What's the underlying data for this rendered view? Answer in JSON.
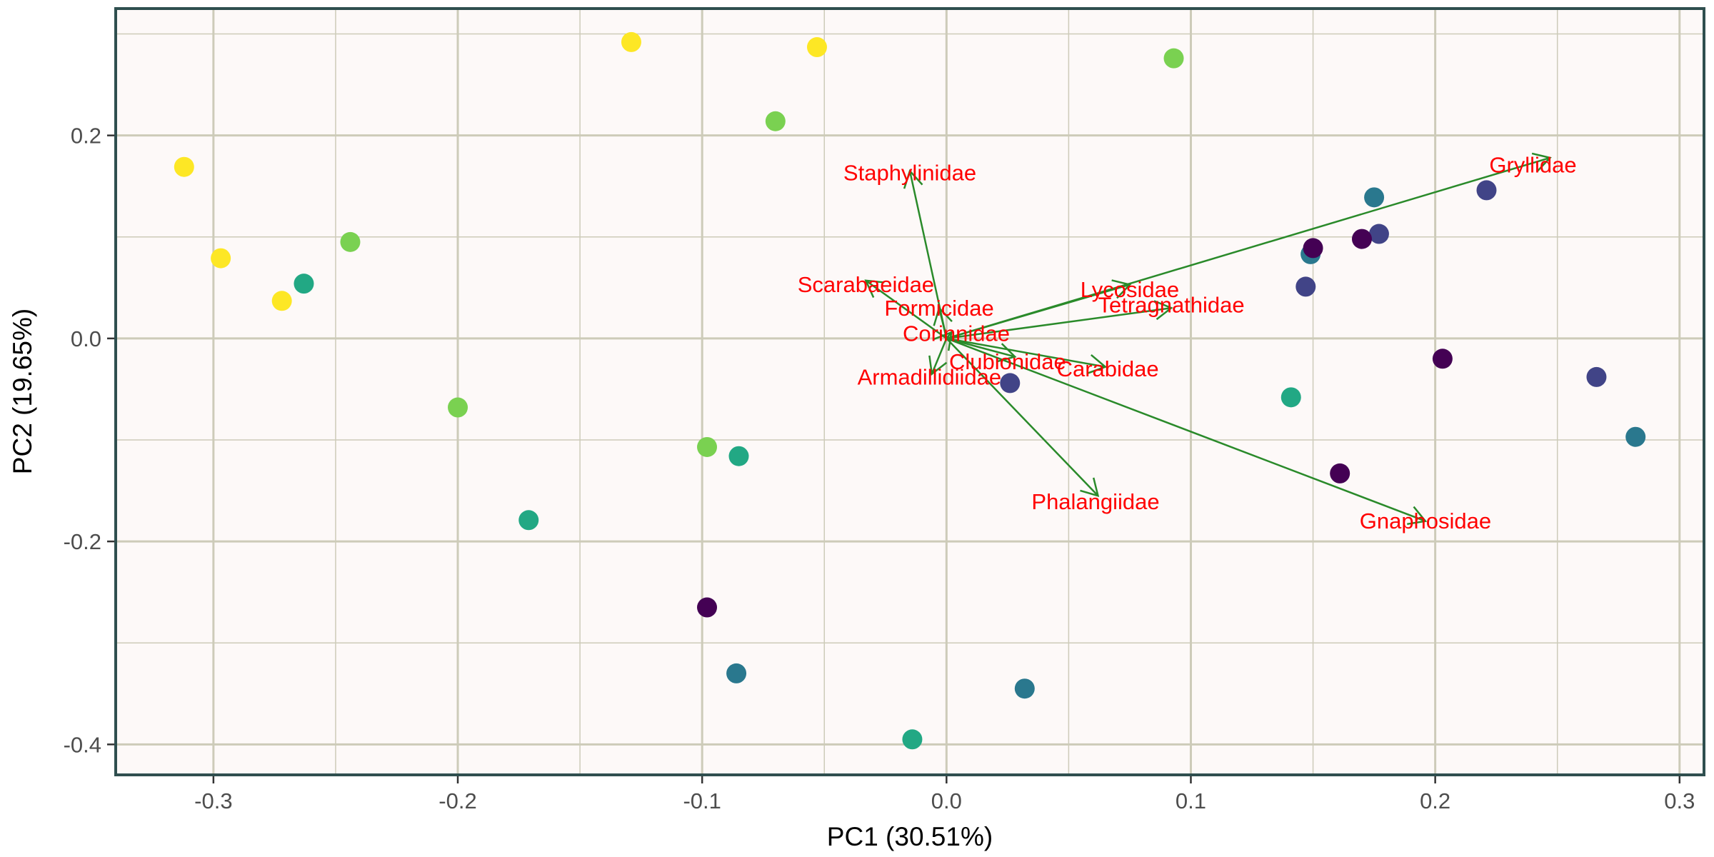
{
  "chart_data": {
    "type": "scatter",
    "title": "",
    "xlabel": "PC1 (30.51%)",
    "ylabel": "PC2 (19.65%)",
    "xlim": [
      -0.34,
      0.31
    ],
    "ylim": [
      -0.43,
      0.325
    ],
    "x_ticks": [
      -0.3,
      -0.2,
      -0.1,
      0.0,
      0.1,
      0.2,
      0.3
    ],
    "x_tick_labels": [
      "-0.3",
      "-0.2",
      "-0.1",
      "0.0",
      "0.1",
      "0.2",
      "0.3"
    ],
    "y_ticks": [
      -0.4,
      -0.2,
      0.0,
      0.2
    ],
    "y_tick_labels": [
      "-0.4",
      "-0.2",
      "0.0",
      "0.2"
    ],
    "x_minor_ticks": [
      -0.25,
      -0.15,
      -0.05,
      0.05,
      0.15,
      0.25
    ],
    "y_minor_ticks": [
      -0.3,
      -0.1,
      0.1,
      0.3
    ],
    "grid": true,
    "legend": "none",
    "colors": {
      "panel_background": "#fdf9f8",
      "grid": "#cdcbb9",
      "border": "#2f4f4f",
      "arrow": "#2a8a2a",
      "label": "#ff0000"
    },
    "points": [
      {
        "x": -0.312,
        "y": 0.169,
        "color": "#fde725"
      },
      {
        "x": -0.297,
        "y": 0.079,
        "color": "#fde725"
      },
      {
        "x": -0.272,
        "y": 0.037,
        "color": "#fde725"
      },
      {
        "x": -0.129,
        "y": 0.292,
        "color": "#fde725"
      },
      {
        "x": -0.053,
        "y": 0.287,
        "color": "#fde725"
      },
      {
        "x": -0.244,
        "y": 0.095,
        "color": "#7ad151"
      },
      {
        "x": -0.2,
        "y": -0.068,
        "color": "#7ad151"
      },
      {
        "x": -0.098,
        "y": -0.107,
        "color": "#7ad151"
      },
      {
        "x": -0.07,
        "y": 0.214,
        "color": "#7ad151"
      },
      {
        "x": 0.093,
        "y": 0.276,
        "color": "#7ad151"
      },
      {
        "x": -0.263,
        "y": 0.054,
        "color": "#22a884"
      },
      {
        "x": -0.171,
        "y": -0.179,
        "color": "#22a884"
      },
      {
        "x": -0.085,
        "y": -0.116,
        "color": "#22a884"
      },
      {
        "x": -0.014,
        "y": -0.395,
        "color": "#22a884"
      },
      {
        "x": 0.141,
        "y": -0.058,
        "color": "#22a884"
      },
      {
        "x": -0.086,
        "y": -0.33,
        "color": "#2a788e"
      },
      {
        "x": 0.032,
        "y": -0.345,
        "color": "#2a788e"
      },
      {
        "x": 0.149,
        "y": 0.083,
        "color": "#2a788e"
      },
      {
        "x": 0.175,
        "y": 0.139,
        "color": "#2a788e"
      },
      {
        "x": 0.282,
        "y": -0.097,
        "color": "#2a788e"
      },
      {
        "x": 0.026,
        "y": -0.044,
        "color": "#414487"
      },
      {
        "x": 0.147,
        "y": 0.051,
        "color": "#414487"
      },
      {
        "x": 0.177,
        "y": 0.103,
        "color": "#414487"
      },
      {
        "x": 0.221,
        "y": 0.146,
        "color": "#414487"
      },
      {
        "x": 0.266,
        "y": -0.038,
        "color": "#414487"
      },
      {
        "x": -0.098,
        "y": -0.265,
        "color": "#440154"
      },
      {
        "x": 0.15,
        "y": 0.089,
        "color": "#440154"
      },
      {
        "x": 0.17,
        "y": 0.098,
        "color": "#440154"
      },
      {
        "x": 0.161,
        "y": -0.133,
        "color": "#440154"
      },
      {
        "x": 0.203,
        "y": -0.02,
        "color": "#440154"
      }
    ],
    "loadings": [
      {
        "name": "Gryllidae",
        "x": 0.247,
        "y": 0.178,
        "label_x": 0.24,
        "label_y": 0.171
      },
      {
        "name": "Staphylinidae",
        "x": -0.015,
        "y": 0.165,
        "label_x": -0.015,
        "label_y": 0.163
      },
      {
        "name": "Scarabaeidae",
        "x": -0.033,
        "y": 0.057,
        "label_x": -0.033,
        "label_y": 0.053
      },
      {
        "name": "Formicidae",
        "x": -0.003,
        "y": 0.03,
        "label_x": -0.003,
        "label_y": 0.03
      },
      {
        "name": "Lycosidae",
        "x": 0.075,
        "y": 0.053,
        "label_x": 0.075,
        "label_y": 0.048
      },
      {
        "name": "Tetragnathidae",
        "x": 0.092,
        "y": 0.03,
        "label_x": 0.092,
        "label_y": 0.033
      },
      {
        "name": "Corinnidae",
        "x": 0.002,
        "y": 0.006,
        "label_x": 0.004,
        "label_y": 0.005
      },
      {
        "name": "Clubionidae",
        "x": 0.028,
        "y": -0.018,
        "label_x": 0.025,
        "label_y": -0.023
      },
      {
        "name": "Carabidae",
        "x": 0.065,
        "y": -0.028,
        "label_x": 0.066,
        "label_y": -0.03
      },
      {
        "name": "Armadillidiidae",
        "x": -0.006,
        "y": -0.035,
        "label_x": -0.007,
        "label_y": -0.038
      },
      {
        "name": "Phalangiidae",
        "x": 0.062,
        "y": -0.155,
        "label_x": 0.061,
        "label_y": -0.161
      },
      {
        "name": "Gnaphosidae",
        "x": 0.196,
        "y": -0.18,
        "label_x": 0.196,
        "label_y": -0.18
      }
    ]
  }
}
